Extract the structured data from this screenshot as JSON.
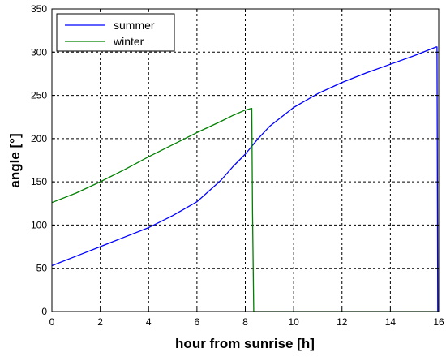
{
  "chart_data": {
    "type": "line",
    "title": "",
    "xlabel": "hour from sunrise [h]",
    "ylabel": "angle [°]",
    "xlim": [
      0,
      16
    ],
    "ylim": [
      0,
      350
    ],
    "xticks": [
      0,
      2,
      4,
      6,
      8,
      10,
      12,
      14,
      16
    ],
    "yticks": [
      0,
      50,
      100,
      150,
      200,
      250,
      300,
      350
    ],
    "grid": true,
    "legend_position": "top-left",
    "series": [
      {
        "name": "summer",
        "color": "#0000ff",
        "x": [
          0,
          1,
          2,
          3,
          4,
          5,
          6,
          7,
          7.5,
          8,
          8.5,
          9,
          10,
          11,
          12,
          13,
          14,
          15,
          15.9,
          15.93,
          15.96
        ],
        "y": [
          53,
          64,
          75,
          86,
          97,
          111,
          127,
          152,
          168,
          182,
          199,
          214,
          236,
          252,
          265,
          276,
          286,
          296,
          306,
          306,
          0
        ]
      },
      {
        "name": "winter",
        "color": "#008000",
        "x": [
          0,
          1,
          2,
          3,
          4,
          5,
          6,
          7,
          7.5,
          8,
          8.25,
          8.27,
          8.3,
          8.35,
          16
        ],
        "y": [
          126,
          137,
          150,
          164,
          179,
          193,
          207,
          220,
          227,
          233,
          235,
          235,
          115,
          0,
          0
        ]
      }
    ]
  }
}
